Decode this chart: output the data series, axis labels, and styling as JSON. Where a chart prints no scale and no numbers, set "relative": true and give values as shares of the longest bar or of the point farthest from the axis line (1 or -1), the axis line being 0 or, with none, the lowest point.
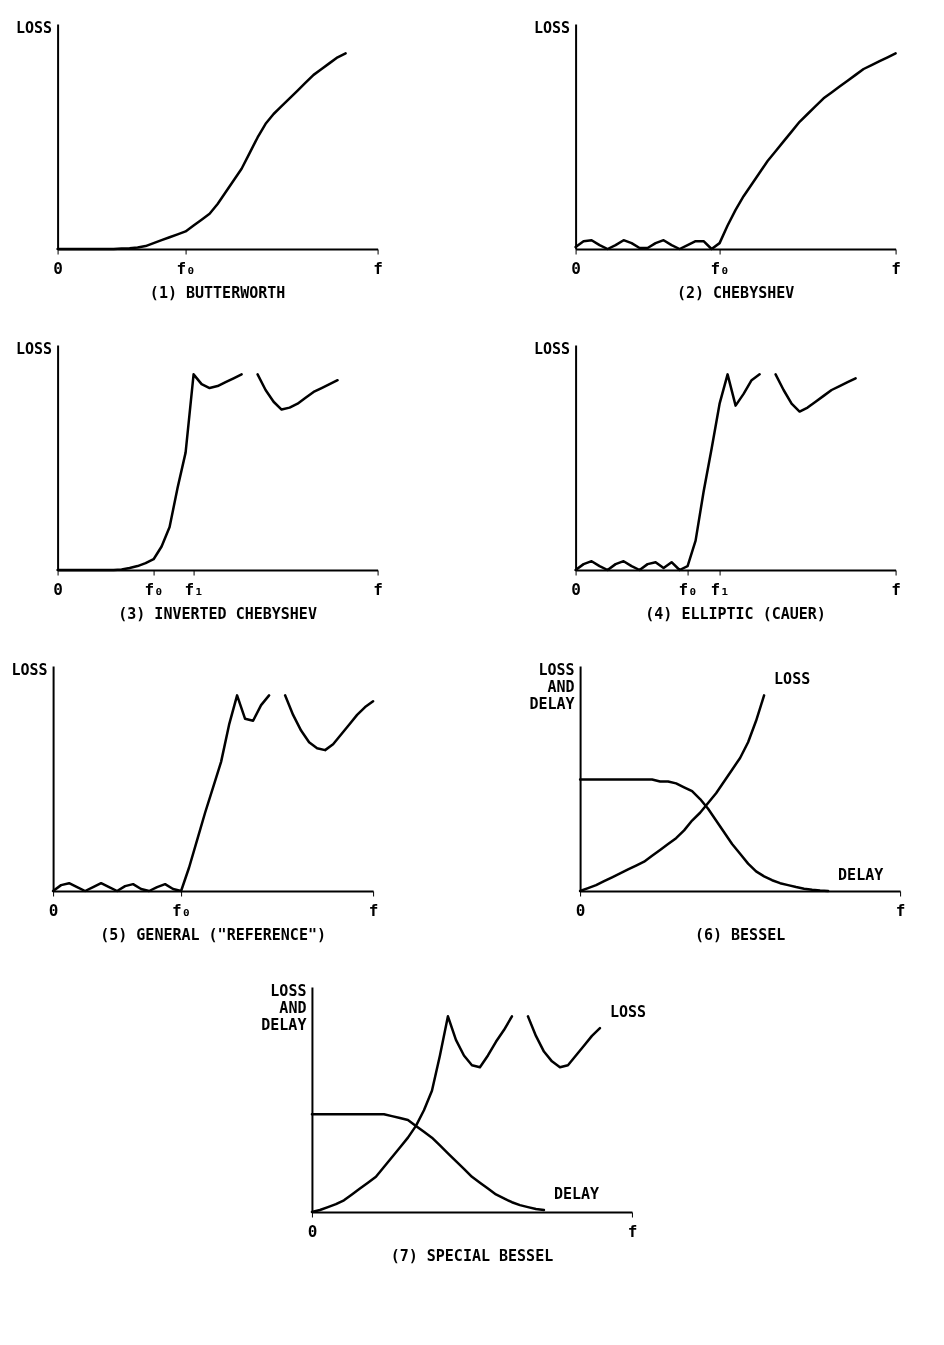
{
  "chart_data": [
    {
      "type": "line",
      "title": "(1)  BUTTERWORTH",
      "ylabel": "LOSS",
      "relative": true,
      "categories": [
        "0",
        null,
        null,
        null,
        null,
        null,
        null,
        null,
        null,
        null,
        null,
        null,
        null,
        null,
        null,
        null,
        "f₀",
        null,
        null,
        null,
        null,
        null,
        null,
        null,
        null,
        null,
        null,
        null,
        null,
        null,
        null,
        null,
        null,
        null,
        null,
        null,
        null,
        null,
        null,
        null,
        "f"
      ],
      "series": [
        {
          "color": "#000000",
          "values": [
            0,
            0,
            0,
            0,
            0,
            0,
            0,
            0,
            0.002,
            0.004,
            0.008,
            0.015,
            0.03,
            0.045,
            0.06,
            0.075,
            0.09,
            0.12,
            0.15,
            0.18,
            0.23,
            0.29,
            0.35,
            0.41,
            0.49,
            0.57,
            0.64,
            0.69,
            0.73,
            0.77,
            0.81,
            0.85,
            0.89,
            0.92,
            0.95,
            0.98,
            1,
            null,
            null,
            null,
            null
          ]
        }
      ]
    },
    {
      "type": "line",
      "title": "(2)  CHEBYSHEV",
      "ylabel": "LOSS",
      "relative": true,
      "categories": [
        "0",
        null,
        null,
        null,
        null,
        null,
        null,
        null,
        null,
        null,
        null,
        null,
        null,
        null,
        null,
        null,
        null,
        null,
        "f₀",
        null,
        null,
        null,
        null,
        null,
        null,
        null,
        null,
        null,
        null,
        null,
        null,
        null,
        null,
        null,
        null,
        null,
        null,
        null,
        null,
        null,
        "f"
      ],
      "series": [
        {
          "color": "#000000",
          "values": [
            0.01,
            0.04,
            0.045,
            0.02,
            0,
            0.02,
            0.045,
            0.03,
            0.005,
            0.005,
            0.03,
            0.045,
            0.02,
            0,
            0.02,
            0.04,
            0.04,
            0,
            0.03,
            0.12,
            0.2,
            0.27,
            0.33,
            0.39,
            0.45,
            0.5,
            0.55,
            0.6,
            0.65,
            0.69,
            0.73,
            0.77,
            0.8,
            0.83,
            0.86,
            0.89,
            0.92,
            0.94,
            0.96,
            0.98,
            1
          ]
        }
      ]
    },
    {
      "type": "line",
      "title": "(3)  INVERTED CHEBYSHEV",
      "ylabel": "LOSS",
      "relative": true,
      "categories": [
        "0",
        null,
        null,
        null,
        null,
        null,
        null,
        null,
        null,
        null,
        null,
        null,
        "f₀",
        null,
        null,
        null,
        null,
        "f₁",
        null,
        null,
        null,
        null,
        null,
        null,
        null,
        null,
        null,
        null,
        null,
        null,
        null,
        null,
        null,
        null,
        null,
        null,
        null,
        null,
        null,
        null,
        "f"
      ],
      "series": [
        {
          "color": "#000000",
          "values": [
            0,
            0,
            0,
            0,
            0,
            0,
            0,
            0,
            0.003,
            0.01,
            0.02,
            0.035,
            0.055,
            0.12,
            0.22,
            0.42,
            0.6,
            1,
            0.95,
            0.93,
            0.94,
            0.96,
            0.98,
            1,
            null,
            1,
            0.92,
            0.86,
            0.82,
            0.83,
            0.85,
            0.88,
            0.91,
            0.93,
            0.95,
            0.97,
            null,
            null,
            null,
            null,
            null
          ]
        }
      ]
    },
    {
      "type": "line",
      "title": "(4)  ELLIPTIC (CAUER)",
      "ylabel": "LOSS",
      "relative": true,
      "categories": [
        "0",
        null,
        null,
        null,
        null,
        null,
        null,
        null,
        null,
        null,
        null,
        null,
        null,
        null,
        "f₀",
        null,
        null,
        null,
        "f₁",
        null,
        null,
        null,
        null,
        null,
        null,
        null,
        null,
        null,
        null,
        null,
        null,
        null,
        null,
        null,
        null,
        null,
        null,
        null,
        null,
        null,
        "f"
      ],
      "series": [
        {
          "color": "#000000",
          "values": [
            0,
            0.03,
            0.045,
            0.02,
            0,
            0.03,
            0.045,
            0.02,
            0,
            0.03,
            0.04,
            0.01,
            0.04,
            0,
            0.02,
            0.15,
            0.4,
            0.62,
            0.85,
            1,
            0.84,
            0.9,
            0.97,
            1,
            null,
            1,
            0.92,
            0.85,
            0.81,
            0.83,
            0.86,
            0.89,
            0.92,
            0.94,
            0.96,
            0.98,
            null,
            null,
            null,
            null,
            null
          ]
        }
      ]
    },
    {
      "type": "line",
      "title": "(5)  GENERAL (\"REFERENCE\")",
      "ylabel": "LOSS",
      "relative": true,
      "categories": [
        "0",
        null,
        null,
        null,
        null,
        null,
        null,
        null,
        null,
        null,
        null,
        null,
        null,
        null,
        null,
        null,
        "f₀",
        null,
        null,
        null,
        null,
        null,
        null,
        null,
        null,
        null,
        null,
        null,
        null,
        null,
        null,
        null,
        null,
        null,
        null,
        null,
        null,
        null,
        null,
        null,
        "f"
      ],
      "series": [
        {
          "color": "#000000",
          "values": [
            0,
            0.03,
            0.04,
            0.02,
            0,
            0.02,
            0.04,
            0.02,
            0,
            0.025,
            0.035,
            0.01,
            0,
            0.02,
            0.035,
            0.01,
            0,
            0.12,
            0.26,
            0.4,
            0.53,
            0.66,
            0.85,
            1,
            0.88,
            0.87,
            0.95,
            1,
            null,
            1,
            0.9,
            0.82,
            0.76,
            0.73,
            0.72,
            0.75,
            0.8,
            0.85,
            0.9,
            0.94,
            0.97
          ]
        }
      ]
    },
    {
      "type": "line",
      "title": "(6)  BESSEL",
      "ylabel": "LOSS\nAND\nDELAY",
      "relative": true,
      "categories": [
        "0",
        null,
        null,
        null,
        null,
        null,
        null,
        null,
        null,
        null,
        null,
        null,
        null,
        null,
        null,
        null,
        null,
        null,
        null,
        null,
        null,
        null,
        null,
        null,
        null,
        null,
        null,
        null,
        null,
        null,
        null,
        null,
        null,
        null,
        null,
        null,
        null,
        null,
        null,
        null,
        "f"
      ],
      "series": [
        {
          "name": "LOSS",
          "color": "#000000",
          "values": [
            0,
            0.015,
            0.03,
            0.05,
            0.07,
            0.09,
            0.11,
            0.13,
            0.15,
            0.18,
            0.21,
            0.24,
            0.27,
            0.31,
            0.36,
            0.4,
            0.45,
            0.5,
            0.56,
            0.62,
            0.68,
            0.76,
            0.87,
            1,
            null,
            null,
            null,
            null,
            null,
            null,
            null,
            null,
            null,
            null,
            null,
            null,
            null,
            null,
            null,
            null,
            null
          ]
        },
        {
          "name": "DELAY",
          "color": "#000000",
          "values": [
            0.57,
            0.57,
            0.57,
            0.57,
            0.57,
            0.57,
            0.57,
            0.57,
            0.57,
            0.57,
            0.56,
            0.56,
            0.55,
            0.53,
            0.51,
            0.47,
            0.42,
            0.36,
            0.3,
            0.24,
            0.19,
            0.14,
            0.1,
            0.075,
            0.055,
            0.04,
            0.03,
            0.02,
            0.012,
            0.006,
            0.002,
            0,
            null,
            null,
            null,
            null,
            null,
            null,
            null,
            null,
            null
          ]
        }
      ]
    },
    {
      "type": "line",
      "title": "(7) SPECIAL BESSEL",
      "ylabel": "LOSS\nAND\nDELAY",
      "relative": true,
      "categories": [
        "0",
        null,
        null,
        null,
        null,
        null,
        null,
        null,
        null,
        null,
        null,
        null,
        null,
        null,
        null,
        null,
        null,
        null,
        null,
        null,
        null,
        null,
        null,
        null,
        null,
        null,
        null,
        null,
        null,
        null,
        null,
        null,
        null,
        null,
        null,
        null,
        null,
        null,
        null,
        null,
        "f"
      ],
      "series": [
        {
          "name": "LOSS",
          "color": "#000000",
          "values": [
            0,
            0.01,
            0.025,
            0.04,
            0.06,
            0.09,
            0.12,
            0.15,
            0.18,
            0.23,
            0.28,
            0.33,
            0.38,
            0.44,
            0.52,
            0.62,
            0.8,
            1,
            0.88,
            0.8,
            0.75,
            0.74,
            0.8,
            0.87,
            0.93,
            1,
            null,
            1,
            0.9,
            0.82,
            0.77,
            0.74,
            0.75,
            0.8,
            0.85,
            0.9,
            0.94,
            null,
            null,
            null,
            null
          ]
        },
        {
          "name": "DELAY",
          "color": "#000000",
          "values": [
            0.5,
            0.5,
            0.5,
            0.5,
            0.5,
            0.5,
            0.5,
            0.5,
            0.5,
            0.5,
            0.49,
            0.48,
            0.47,
            0.44,
            0.41,
            0.38,
            0.34,
            0.3,
            0.26,
            0.22,
            0.18,
            0.15,
            0.12,
            0.09,
            0.07,
            0.05,
            0.035,
            0.025,
            0.015,
            0.01,
            null,
            null,
            null,
            null,
            null,
            null,
            null,
            null,
            null,
            null,
            null
          ]
        }
      ]
    }
  ]
}
